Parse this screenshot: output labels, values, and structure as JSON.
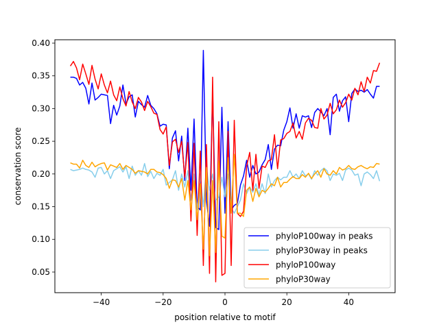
{
  "chart_data": {
    "type": "line",
    "title": "",
    "xlabel": "position relative to motif",
    "ylabel": "conservation score",
    "xlim": [
      -55,
      55
    ],
    "ylim": [
      0.0185,
      0.4052
    ],
    "xticks": [
      -40,
      -20,
      0,
      20,
      40
    ],
    "xtick_labels": [
      "−40",
      "−20",
      "0",
      "20",
      "40"
    ],
    "yticks": [
      0.05,
      0.1,
      0.15,
      0.2,
      0.25,
      0.3,
      0.35,
      0.4
    ],
    "ytick_labels": [
      "0.05",
      "0.10",
      "0.15",
      "0.20",
      "0.25",
      "0.30",
      "0.35",
      "0.40"
    ],
    "grid": false,
    "legend_position": "lower-right",
    "x_start": -50,
    "x_step": 1,
    "series": [
      {
        "name": "phyloP100way in peaks",
        "color": "#0000ff",
        "values": [
          0.348,
          0.348,
          0.346,
          0.336,
          0.34,
          0.331,
          0.307,
          0.339,
          0.313,
          0.317,
          0.322,
          0.321,
          0.32,
          0.277,
          0.305,
          0.29,
          0.304,
          0.336,
          0.307,
          0.318,
          0.321,
          0.287,
          0.311,
          0.306,
          0.302,
          0.32,
          0.305,
          0.3,
          0.292,
          0.273,
          0.276,
          0.275,
          0.208,
          0.255,
          0.266,
          0.22,
          0.258,
          0.19,
          0.27,
          0.175,
          0.284,
          0.15,
          0.145,
          0.389,
          0.16,
          0.12,
          0.325,
          0.118,
          0.115,
          0.302,
          0.14,
          0.28,
          0.145,
          0.152,
          0.155,
          0.183,
          0.197,
          0.221,
          0.195,
          0.213,
          0.2,
          0.203,
          0.214,
          0.222,
          0.245,
          0.207,
          0.238,
          0.244,
          0.243,
          0.267,
          0.28,
          0.301,
          0.27,
          0.292,
          0.27,
          0.289,
          0.287,
          0.289,
          0.271,
          0.294,
          0.3,
          0.295,
          0.289,
          0.3,
          0.26,
          0.317,
          0.322,
          0.296,
          0.312,
          0.318,
          0.28,
          0.323,
          0.33,
          0.326,
          0.328,
          0.325,
          0.329,
          0.322,
          0.316,
          0.334,
          0.334
        ]
      },
      {
        "name": "phyloP30way in peaks",
        "color": "#87ceeb",
        "values": [
          0.207,
          0.205,
          0.206,
          0.207,
          0.209,
          0.207,
          0.206,
          0.203,
          0.195,
          0.209,
          0.21,
          0.2,
          0.205,
          0.193,
          0.205,
          0.208,
          0.211,
          0.203,
          0.211,
          0.193,
          0.212,
          0.198,
          0.205,
          0.198,
          0.216,
          0.196,
          0.204,
          0.193,
          0.201,
          0.198,
          0.207,
          0.183,
          0.187,
          0.191,
          0.205,
          0.175,
          0.2,
          0.18,
          0.205,
          0.16,
          0.2,
          0.145,
          0.2,
          0.15,
          0.21,
          0.175,
          0.2,
          0.16,
          0.165,
          0.195,
          0.165,
          0.2,
          0.148,
          0.14,
          0.15,
          0.16,
          0.185,
          0.17,
          0.18,
          0.172,
          0.185,
          0.168,
          0.185,
          0.17,
          0.2,
          0.18,
          0.19,
          0.195,
          0.191,
          0.195,
          0.195,
          0.205,
          0.195,
          0.2,
          0.193,
          0.205,
          0.197,
          0.2,
          0.192,
          0.205,
          0.198,
          0.205,
          0.209,
          0.205,
          0.19,
          0.2,
          0.198,
          0.201,
          0.19,
          0.206,
          0.209,
          0.206,
          0.198,
          0.2,
          0.182,
          0.2,
          0.203,
          0.199,
          0.193,
          0.205,
          0.189
        ]
      },
      {
        "name": "phyloP100way",
        "color": "#ff0000",
        "values": [
          0.365,
          0.372,
          0.362,
          0.344,
          0.368,
          0.353,
          0.337,
          0.366,
          0.345,
          0.33,
          0.353,
          0.336,
          0.324,
          0.342,
          0.321,
          0.312,
          0.333,
          0.315,
          0.304,
          0.326,
          0.31,
          0.3,
          0.317,
          0.31,
          0.297,
          0.311,
          0.303,
          0.293,
          0.291,
          0.268,
          0.261,
          0.272,
          0.213,
          0.249,
          0.253,
          0.233,
          0.25,
          0.195,
          0.248,
          0.128,
          0.247,
          0.106,
          0.235,
          0.06,
          0.245,
          0.048,
          0.348,
          0.035,
          0.28,
          0.045,
          0.048,
          0.265,
          0.06,
          0.282,
          0.14,
          0.135,
          0.143,
          0.212,
          0.233,
          0.175,
          0.23,
          0.178,
          0.212,
          0.21,
          0.22,
          0.222,
          0.26,
          0.208,
          0.252,
          0.254,
          0.262,
          0.265,
          0.278,
          0.255,
          0.265,
          0.253,
          0.278,
          0.285,
          0.282,
          0.271,
          0.27,
          0.3,
          0.284,
          0.29,
          0.308,
          0.292,
          0.298,
          0.313,
          0.302,
          0.309,
          0.322,
          0.313,
          0.331,
          0.321,
          0.341,
          0.326,
          0.348,
          0.339,
          0.358,
          0.357,
          0.37
        ]
      },
      {
        "name": "phyloP30way",
        "color": "#ffa500",
        "values": [
          0.217,
          0.215,
          0.215,
          0.209,
          0.221,
          0.213,
          0.21,
          0.218,
          0.211,
          0.214,
          0.216,
          0.217,
          0.206,
          0.214,
          0.212,
          0.21,
          0.216,
          0.207,
          0.213,
          0.21,
          0.207,
          0.201,
          0.205,
          0.204,
          0.203,
          0.2,
          0.207,
          0.207,
          0.203,
          0.202,
          0.199,
          0.193,
          0.178,
          0.191,
          0.19,
          0.18,
          0.193,
          0.16,
          0.19,
          0.145,
          0.19,
          0.13,
          0.185,
          0.085,
          0.21,
          0.075,
          0.19,
          0.08,
          0.22,
          0.105,
          0.102,
          0.225,
          0.14,
          0.23,
          0.14,
          0.14,
          0.135,
          0.175,
          0.18,
          0.158,
          0.178,
          0.165,
          0.175,
          0.172,
          0.178,
          0.185,
          0.182,
          0.195,
          0.18,
          0.187,
          0.187,
          0.192,
          0.196,
          0.193,
          0.193,
          0.199,
          0.195,
          0.201,
          0.193,
          0.2,
          0.205,
          0.195,
          0.208,
          0.2,
          0.198,
          0.205,
          0.2,
          0.21,
          0.206,
          0.208,
          0.213,
          0.208,
          0.207,
          0.211,
          0.213,
          0.21,
          0.208,
          0.211,
          0.21,
          0.216,
          0.215
        ]
      }
    ]
  }
}
